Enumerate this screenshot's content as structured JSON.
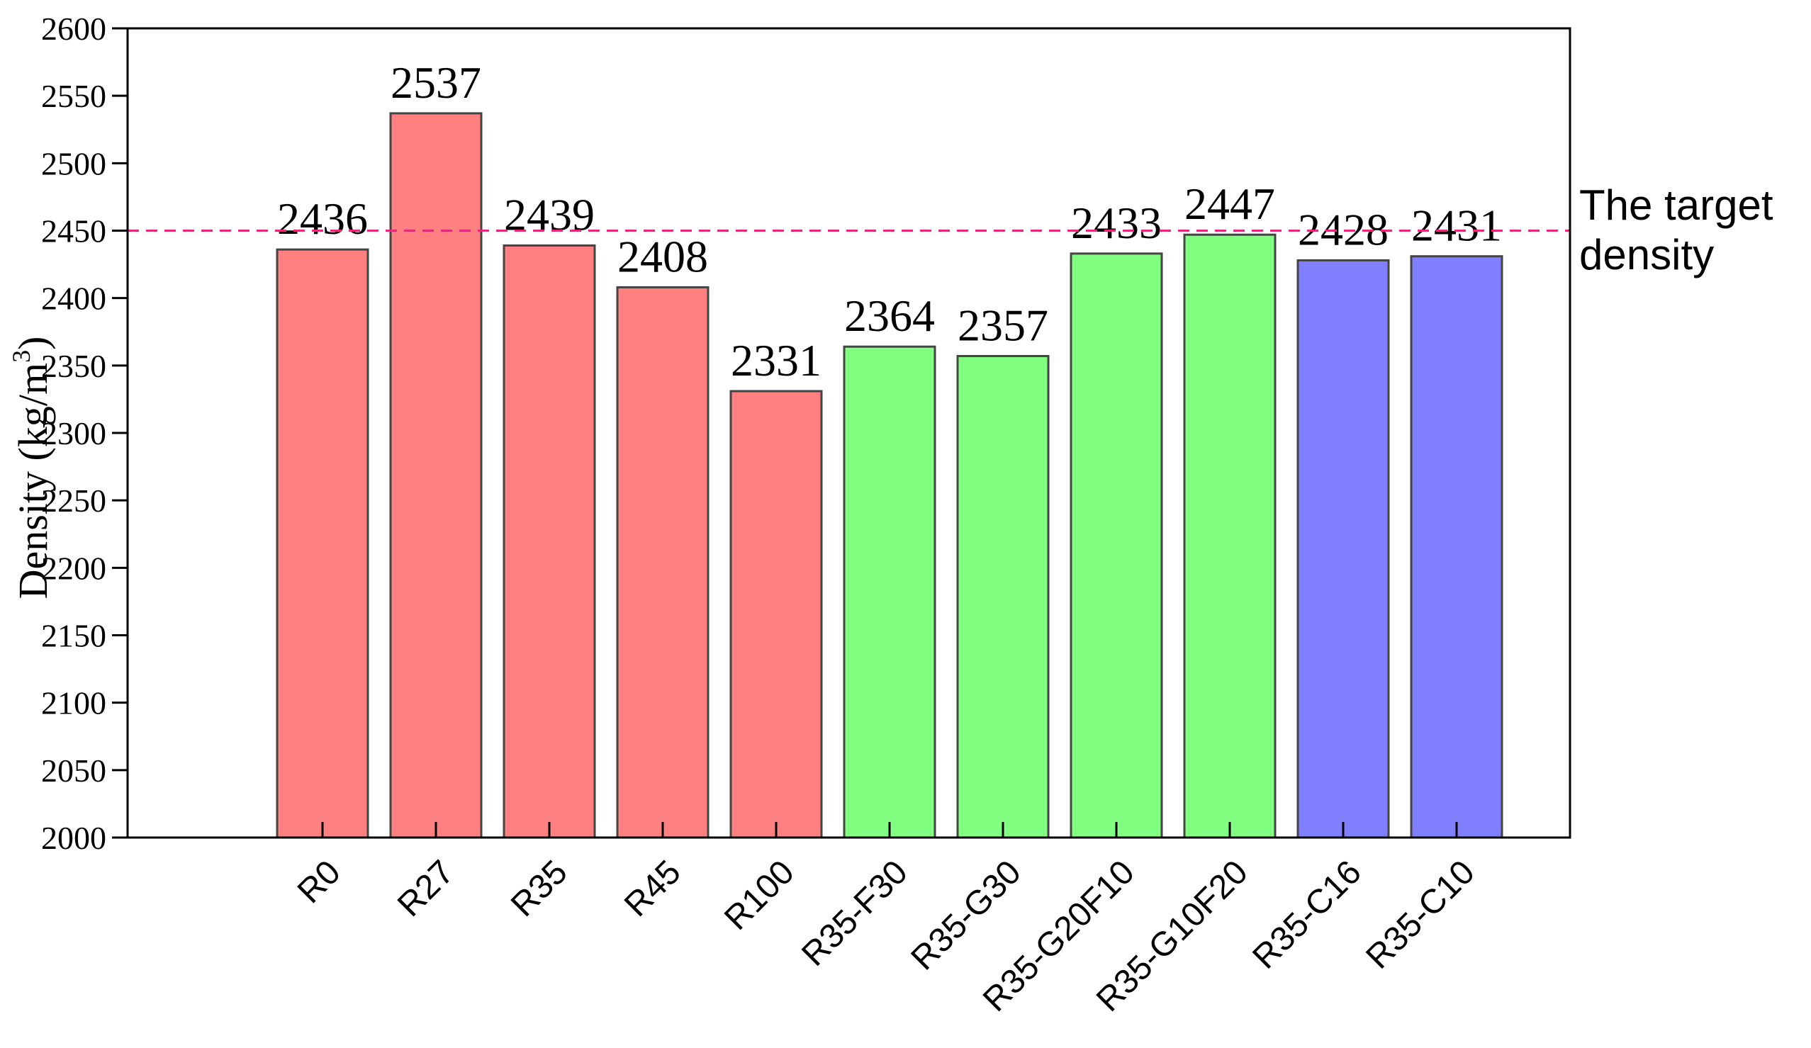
{
  "chart_data": {
    "type": "bar",
    "title": "",
    "xlabel": "",
    "ylabel": "Density (kg/m",
    "ylabel_sup": "3",
    "ylabel_close": ")",
    "ylim": [
      2000,
      2600
    ],
    "yticks": [
      2000,
      2050,
      2100,
      2150,
      2200,
      2250,
      2300,
      2350,
      2400,
      2450,
      2500,
      2550,
      2600
    ],
    "categories": [
      "R0",
      "R27",
      "R35",
      "R45",
      "R100",
      "R35-F30",
      "R35-G30",
      "R35-G20F10",
      "R35-G10F20",
      "R35-C16",
      "R35-C10"
    ],
    "values": [
      2436,
      2537,
      2439,
      2408,
      2331,
      2364,
      2357,
      2433,
      2447,
      2428,
      2431
    ],
    "bar_colors": [
      "#ff8080",
      "#ff8080",
      "#ff8080",
      "#ff8080",
      "#ff8080",
      "#80ff80",
      "#80ff80",
      "#80ff80",
      "#80ff80",
      "#8080ff",
      "#8080ff"
    ],
    "reference_line": {
      "value": 2450,
      "label_lines": [
        "The target",
        "density"
      ],
      "color": "#e8297a",
      "style": "dashed"
    },
    "data_labels": true,
    "grid": false,
    "legend": "none"
  }
}
